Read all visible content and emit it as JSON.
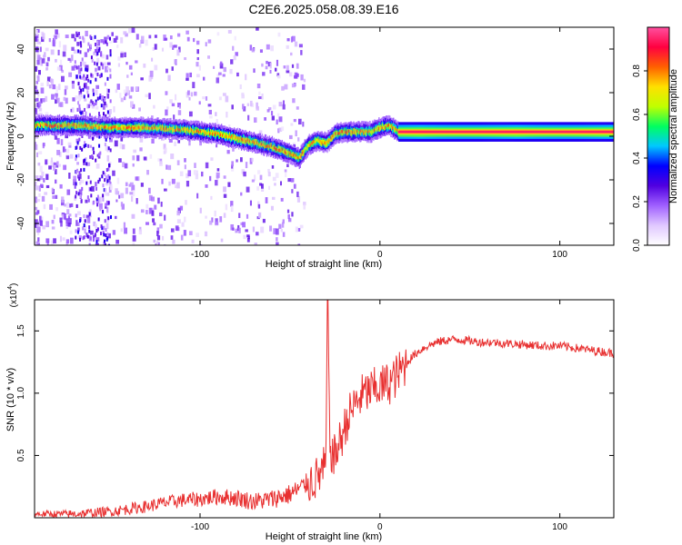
{
  "title": "C2E6.2025.058.08.39.E16",
  "chart_data": [
    {
      "type": "heatmap",
      "title": "",
      "xlabel": "Height of straight line (km)",
      "ylabel": "Frequency (Hz)",
      "xlim": [
        -192,
        130
      ],
      "ylim": [
        -50,
        50
      ],
      "xticks": [
        -100,
        0,
        100
      ],
      "yticks": [
        -40,
        -20,
        0,
        20,
        40
      ],
      "colorbar": {
        "label": "Normalized spectral amplitude",
        "range": [
          0,
          1
        ],
        "ticks": [
          0.0,
          0.2,
          0.4,
          0.6,
          0.8
        ],
        "colormap": [
          "#ffffff",
          "#e0c8ff",
          "#a060ff",
          "#5000e0",
          "#0000ff",
          "#00c8ff",
          "#00ff60",
          "#c0ff00",
          "#ffe000",
          "#ff6000",
          "#ff0040",
          "#ff50a0"
        ]
      },
      "ridge": {
        "x": [
          -190,
          -170,
          -150,
          -130,
          -110,
          -90,
          -75,
          -60,
          -50,
          -45,
          -40,
          -35,
          -30,
          -25,
          -20,
          -10,
          -5,
          0,
          5,
          10,
          20,
          40,
          60,
          80,
          100,
          130
        ],
        "y": [
          5,
          5,
          4,
          4,
          3,
          1,
          -2,
          -5,
          -8,
          -10,
          -4,
          -2,
          -3,
          1,
          2,
          2,
          2,
          4,
          5,
          2,
          2,
          2,
          2,
          2,
          2,
          2
        ]
      }
    },
    {
      "type": "line",
      "title": "",
      "xlabel": "Height of straight line (km)",
      "ylabel": "SNR (10 * v/v)",
      "y_multiplier": "(x10",
      "y_exponent": "4",
      "xlim": [
        -192,
        130
      ],
      "ylim": [
        0,
        17500
      ],
      "xticks": [
        -100,
        0,
        100
      ],
      "yticks": [
        5000,
        10000,
        15000
      ],
      "ytick_labels": [
        "0.5",
        "1.0",
        "1.5"
      ],
      "color": "#e83030",
      "series": [
        {
          "x": [
            -192,
            -170,
            -150,
            -140,
            -130,
            -120,
            -110,
            -100,
            -90,
            -80,
            -70,
            -60,
            -50,
            -45,
            -40,
            -35,
            -30,
            -29,
            -28,
            -26,
            -25,
            -22,
            -20,
            -18,
            -15,
            -12,
            -10,
            -8,
            -5,
            0,
            5,
            10,
            15,
            20,
            25,
            30,
            35,
            40,
            45,
            50,
            55,
            60,
            70,
            80,
            90,
            100,
            110,
            120,
            130
          ],
          "y": [
            300,
            300,
            500,
            700,
            900,
            1200,
            1400,
            1500,
            1700,
            1600,
            1300,
            1500,
            1900,
            2300,
            2800,
            3200,
            4200,
            17500,
            6000,
            4800,
            5000,
            6200,
            7000,
            8000,
            8800,
            9500,
            9800,
            10000,
            10200,
            10500,
            10800,
            11500,
            12500,
            13200,
            13700,
            14000,
            14200,
            14300,
            14300,
            14200,
            14100,
            14100,
            14000,
            13900,
            13800,
            13800,
            13600,
            13400,
            13200
          ]
        }
      ]
    }
  ]
}
